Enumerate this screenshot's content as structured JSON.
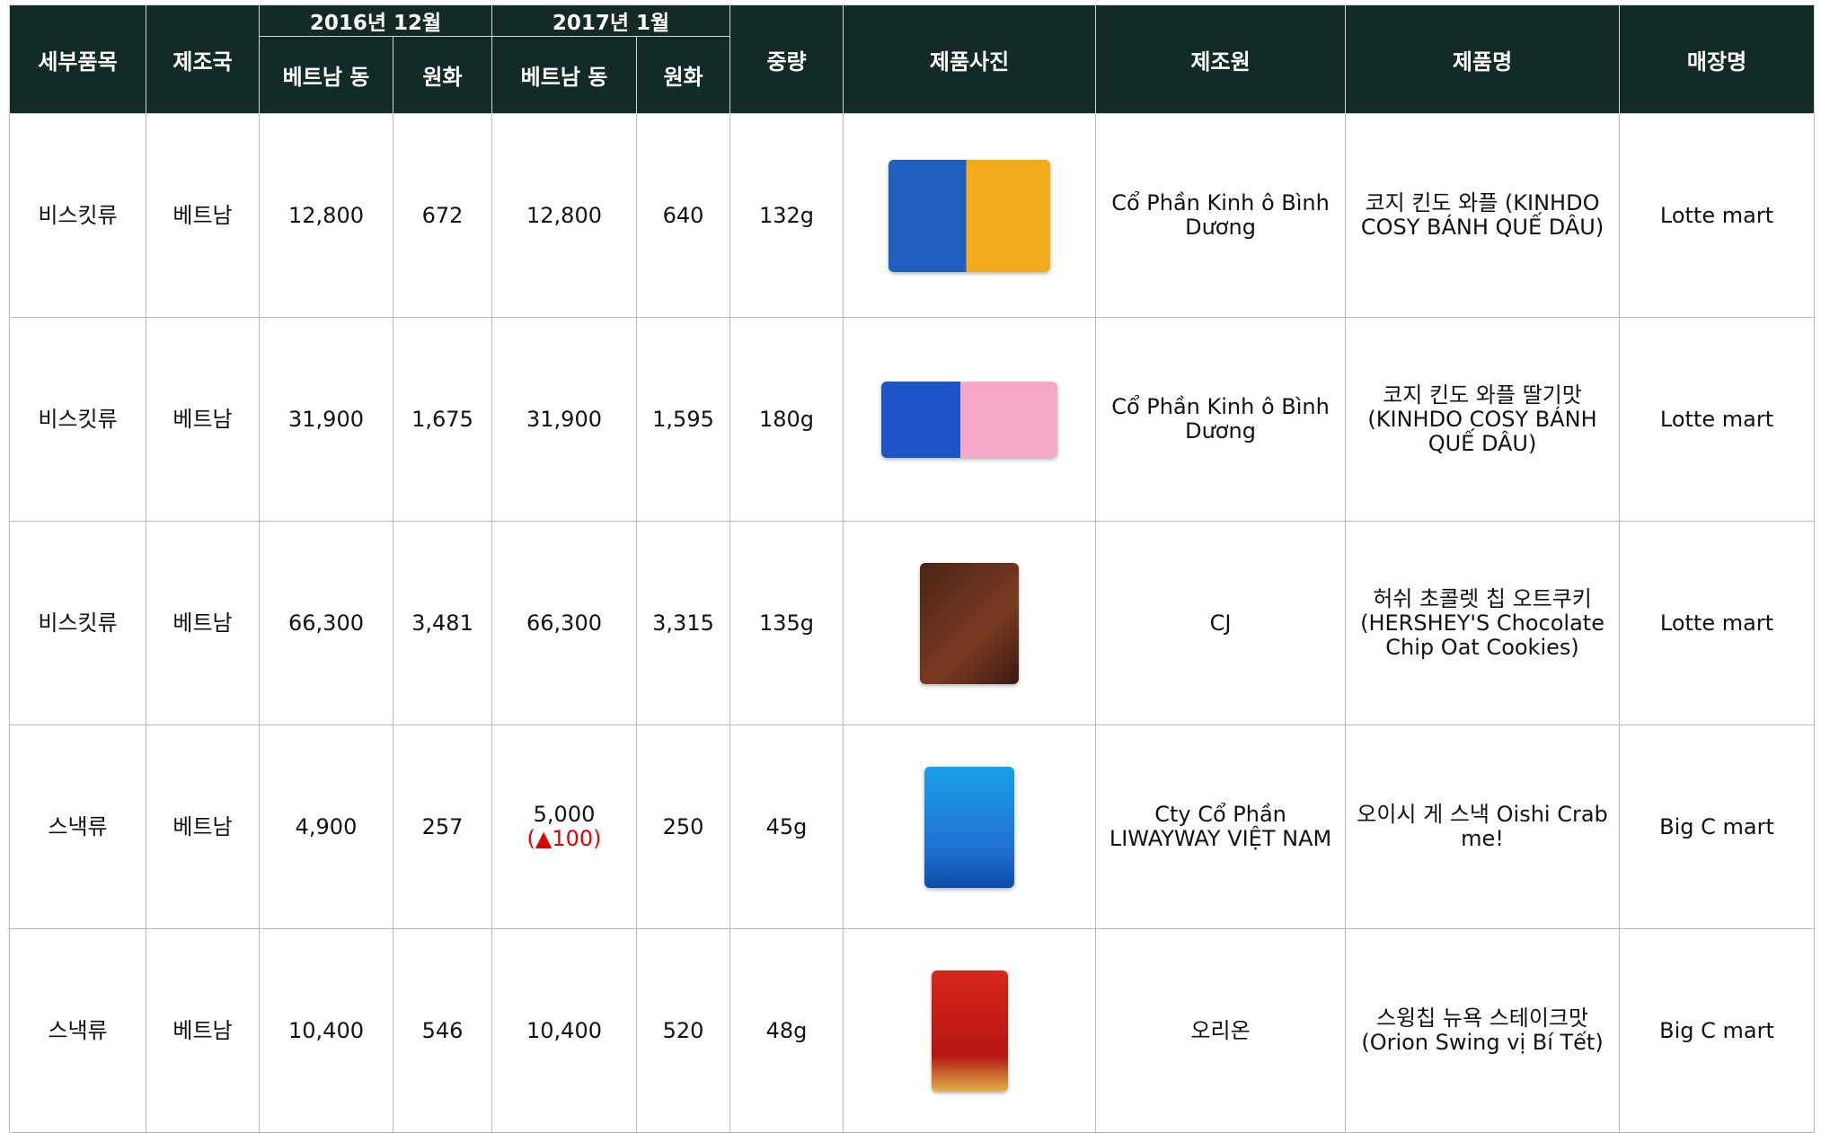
{
  "header": {
    "category": "세부품목",
    "country": "제조국",
    "period_1": "2016년 12월",
    "period_2": "2017년 1월",
    "vnd": "베트남 동",
    "krw": "원화",
    "weight": "중량",
    "photo": "제품사진",
    "maker": "제조원",
    "product": "제품명",
    "store": "매장명"
  },
  "table": {
    "rows": [
      {
        "category": "비스킷류",
        "country": "베트남",
        "dec_vnd": "12,800",
        "dec_krw": "672",
        "jan_vnd": "12,800",
        "jan_krw": "640",
        "weight": "132g",
        "maker": "Cổ Phần Kinh ô Bình Dương",
        "product": "코지 킨도 와플 (KINHDO COSY BÁNH QUẾ DÂU)",
        "store": "Lotte mart"
      },
      {
        "category": "비스킷류",
        "country": "베트남",
        "dec_vnd": "31,900",
        "dec_krw": "1,675",
        "jan_vnd": "31,900",
        "jan_krw": "1,595",
        "weight": "180g",
        "maker": "Cổ Phần Kinh ô Bình Dương",
        "product": "코지 킨도 와플 딸기맛 (KINHDO COSY BÁNH QUẾ DÂU)",
        "store": "Lotte mart"
      },
      {
        "category": "비스킷류",
        "country": "베트남",
        "dec_vnd": "66,300",
        "dec_krw": "3,481",
        "jan_vnd": "66,300",
        "jan_krw": "3,315",
        "weight": "135g",
        "maker": "CJ",
        "product": "허쉬 초콜렛 칩 오트쿠키 (HERSHEY'S Chocolate Chip Oat Cookies)",
        "store": "Lotte mart"
      },
      {
        "category": "스낵류",
        "country": "베트남",
        "dec_vnd": "4,900",
        "dec_krw": "257",
        "jan_vnd": "5,000",
        "jan_change": "(▲100)",
        "jan_krw": "250",
        "weight": "45g",
        "maker": "Cty Cổ Phần LIWAYWAY VIỆT NAM",
        "product": "오이시 게 스낵 Oishi Crab me!",
        "store": "Big C mart"
      },
      {
        "category": "스낵류",
        "country": "베트남",
        "dec_vnd": "10,400",
        "dec_krw": "546",
        "jan_vnd": "10,400",
        "jan_krw": "520",
        "weight": "48g",
        "maker": "오리온",
        "product": "스윙칩 뉴욕 스테이크맛 (Orion Swing vị Bí Tết)",
        "store": "Big C mart"
      }
    ]
  }
}
